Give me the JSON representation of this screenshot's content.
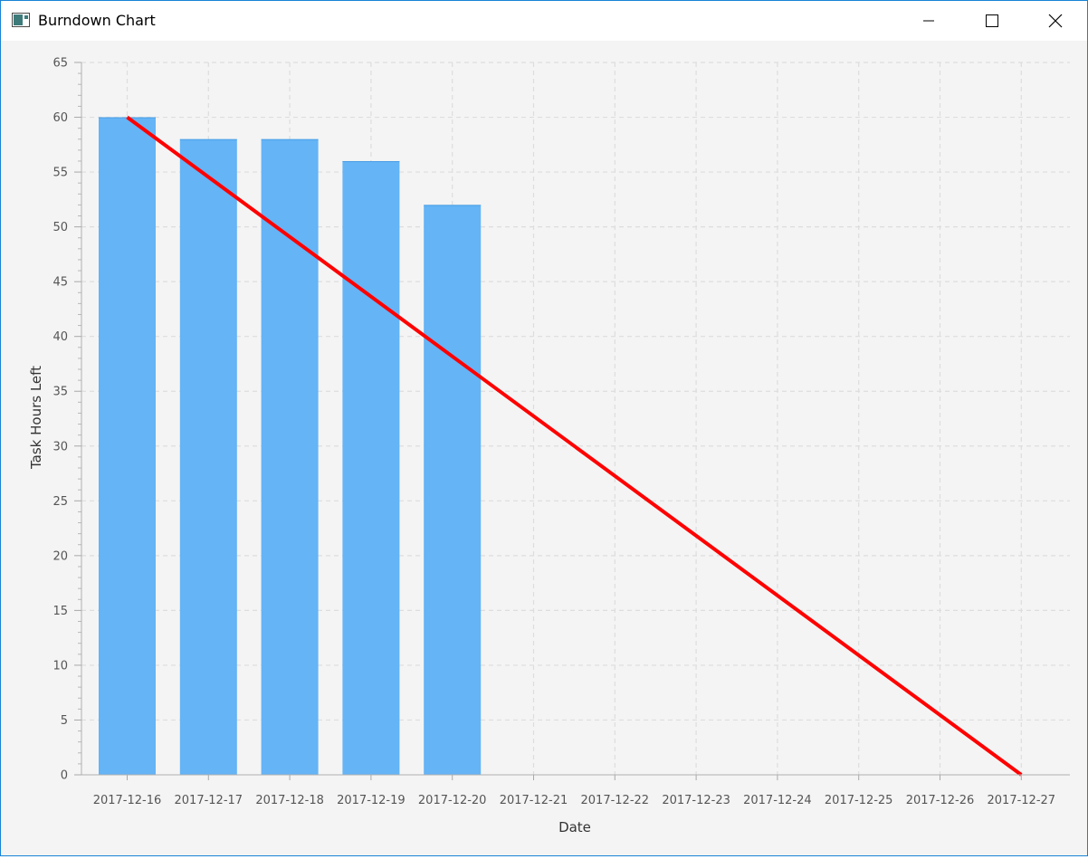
{
  "window": {
    "title": "Burndown Chart",
    "icon": "app-window-icon",
    "controls": [
      "minimize-icon",
      "maximize-icon",
      "close-icon"
    ]
  },
  "chart_data": {
    "type": "bar",
    "xlabel": "Date",
    "ylabel": "Task Hours Left",
    "ylim": [
      0,
      65
    ],
    "y_major_step": 5,
    "y_minor_step": 1,
    "grid": true,
    "categories": [
      "2017-12-16",
      "2017-12-17",
      "2017-12-18",
      "2017-12-19",
      "2017-12-20",
      "2017-12-21",
      "2017-12-22",
      "2017-12-23",
      "2017-12-24",
      "2017-12-25",
      "2017-12-26",
      "2017-12-27"
    ],
    "series": [
      {
        "values": [
          60,
          58,
          58,
          56,
          52,
          null,
          null,
          null,
          null,
          null,
          null,
          null
        ],
        "color": "#64b4f6",
        "kind": "bar"
      },
      {
        "values": [
          60,
          null,
          null,
          null,
          null,
          null,
          null,
          null,
          null,
          null,
          null,
          0
        ],
        "color": "#ff0000",
        "kind": "line"
      }
    ]
  }
}
